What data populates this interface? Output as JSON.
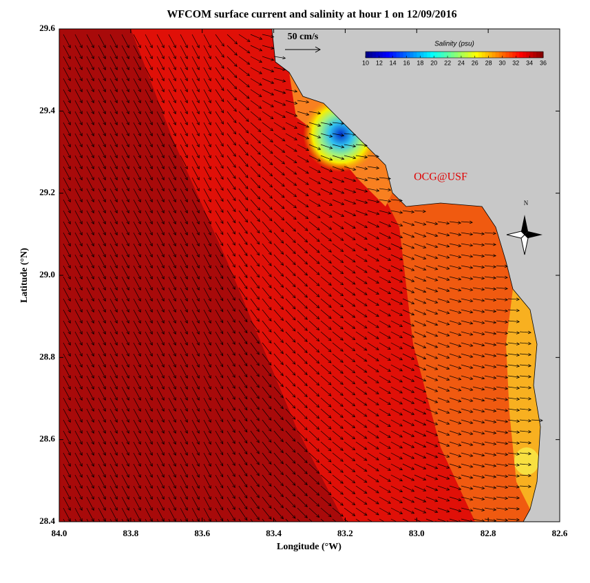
{
  "map": {
    "title": "WFCOM surface current and salinity at hour 1 on 12/09/2016",
    "x_label": "Longitude (°W)",
    "y_label": "Latitude (°N)",
    "xlim": [
      84.0,
      82.6
    ],
    "ylim": [
      28.4,
      29.6
    ],
    "xticks": [
      {
        "value": 84.0,
        "label": "84.0"
      },
      83.8,
      83.6,
      83.4,
      83.2,
      {
        "value": 83.0,
        "label": "83.0"
      },
      82.8,
      82.6
    ],
    "yticks": [
      28.4,
      28.6,
      28.8,
      {
        "value": 29.0,
        "label": "29.0"
      },
      29.2,
      29.4,
      29.6
    ],
    "colorbar": {
      "title": "Salinity (psu)",
      "lim": [
        10,
        36
      ],
      "ticks": [
        10,
        12,
        14,
        16,
        18,
        20,
        22,
        24,
        26,
        28,
        30,
        32,
        34,
        36
      ]
    },
    "scale_label": "50 cm/s",
    "credit": "OCG@USF",
    "compass_label": "N"
  }
}
